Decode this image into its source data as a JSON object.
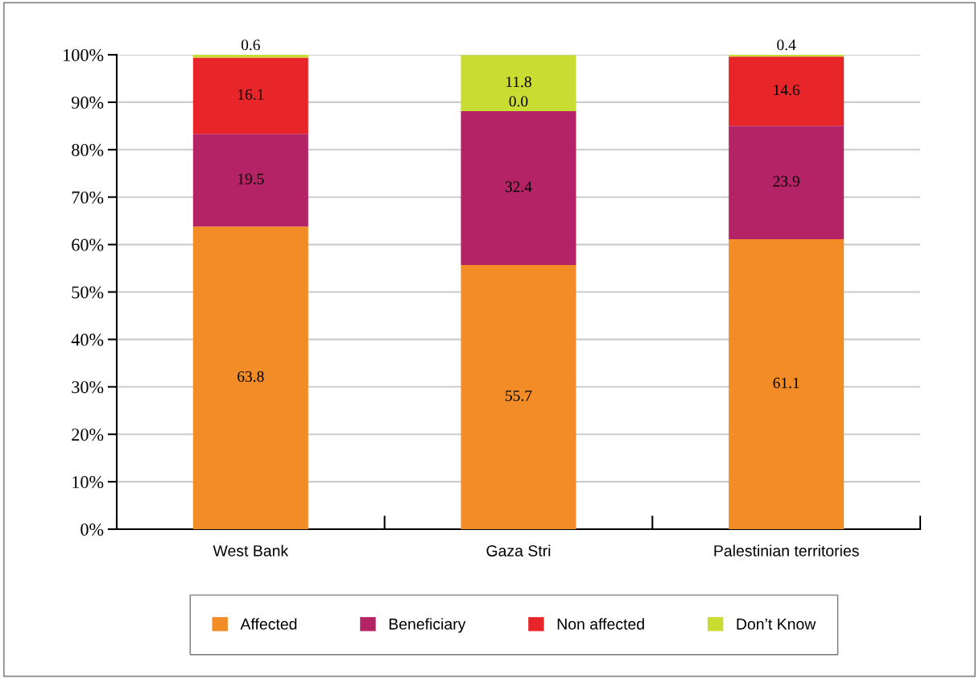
{
  "chart_data": {
    "type": "bar",
    "stacked": true,
    "categories": [
      "West Bank",
      "Gaza Stri",
      "Palestinian territories"
    ],
    "series": [
      {
        "name": "Affected",
        "color": "#f28c26",
        "values": [
          63.8,
          55.7,
          61.1
        ],
        "value_labels": [
          "63.8",
          "55.7",
          "61.1"
        ]
      },
      {
        "name": "Beneficiary",
        "color": "#b52367",
        "values": [
          19.5,
          32.4,
          23.9
        ],
        "value_labels": [
          "19.5",
          "32.4",
          "23.9"
        ]
      },
      {
        "name": "Non affected",
        "color": "#e8262a",
        "values": [
          16.1,
          0.0,
          14.6
        ],
        "value_labels": [
          "16.1",
          "0.0",
          "14.6"
        ]
      },
      {
        "name": "Don’t Know",
        "color": "#c8dc32",
        "values": [
          0.6,
          11.8,
          0.4
        ],
        "value_labels": [
          "0.6",
          "11.8",
          "0.4"
        ]
      }
    ],
    "ylim": [
      0,
      100
    ],
    "yticks": [
      {
        "value": 0,
        "label": "0%"
      },
      {
        "value": 10,
        "label": "10%"
      },
      {
        "value": 20,
        "label": "20%"
      },
      {
        "value": 30,
        "label": "30%"
      },
      {
        "value": 40,
        "label": "40%"
      },
      {
        "value": 50,
        "label": "50%"
      },
      {
        "value": 60,
        "label": "60%"
      },
      {
        "value": 70,
        "label": "70%"
      },
      {
        "value": 80,
        "label": "80%"
      },
      {
        "value": 90,
        "label": "90%"
      },
      {
        "value": 100,
        "label": "100%"
      }
    ],
    "grid": "y",
    "legend": "bottom"
  }
}
